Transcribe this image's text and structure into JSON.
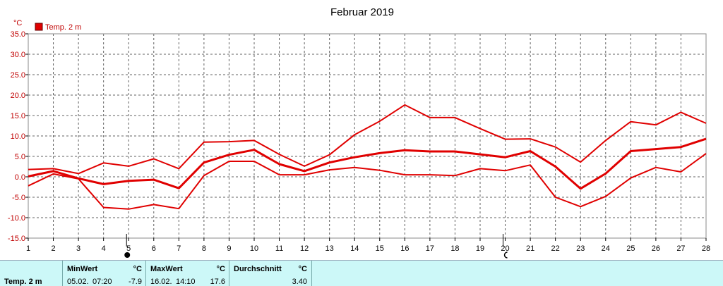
{
  "chart_data": {
    "type": "line",
    "title": "Februar 2019",
    "ylabel": "°C",
    "ylim": [
      -15,
      35
    ],
    "yticks": [
      "35.0",
      "30.0",
      "25.0",
      "20.0",
      "15.0",
      "10.0",
      "5.0",
      "0.0",
      "-5.0",
      "-10.0",
      "-15.0"
    ],
    "ytick_values": [
      35,
      30,
      25,
      20,
      15,
      10,
      5,
      0,
      -5,
      -10,
      -15
    ],
    "x": [
      1,
      2,
      3,
      4,
      5,
      6,
      7,
      8,
      9,
      10,
      11,
      12,
      13,
      14,
      15,
      16,
      17,
      18,
      19,
      20,
      21,
      22,
      23,
      24,
      25,
      26,
      27,
      28
    ],
    "grid": true,
    "legend": "top-left",
    "legend_label": "Temp. 2 m",
    "series": [
      {
        "name": "Temp. 2 m",
        "role": "max",
        "color": "#e00000",
        "values": [
          1.8,
          2.0,
          0.8,
          3.4,
          2.6,
          4.4,
          2.0,
          8.5,
          8.6,
          8.9,
          5.5,
          2.6,
          5.4,
          10.3,
          13.6,
          17.6,
          14.5,
          14.5,
          11.8,
          9.2,
          9.3,
          7.3,
          3.6,
          8.9,
          13.5,
          12.7,
          15.8,
          13.1
        ]
      },
      {
        "name": "Temp. 2 m",
        "role": "mean",
        "color": "#e00000",
        "values": [
          0.1,
          1.4,
          -0.4,
          -1.8,
          -1.0,
          -0.7,
          -2.8,
          3.5,
          5.4,
          6.6,
          3.1,
          1.4,
          3.5,
          4.8,
          5.8,
          6.5,
          6.2,
          6.2,
          5.5,
          4.8,
          6.3,
          2.5,
          -2.9,
          0.8,
          6.3,
          6.8,
          7.3,
          9.3
        ]
      },
      {
        "name": "Temp. 2 m",
        "role": "min",
        "color": "#e00000",
        "values": [
          -2.2,
          0.7,
          -0.5,
          -7.5,
          -7.9,
          -6.8,
          -7.8,
          0.3,
          3.8,
          3.8,
          0.5,
          0.5,
          1.7,
          2.3,
          1.6,
          0.5,
          0.5,
          0.3,
          2.0,
          1.5,
          2.9,
          -5.0,
          -7.3,
          -4.8,
          -0.3,
          2.3,
          1.2,
          5.7
        ]
      }
    ],
    "moon_phases": [
      {
        "x": 5,
        "phase": "new"
      },
      {
        "x": 20,
        "phase": "waxing"
      }
    ]
  },
  "stats": {
    "series_label": "Temp. 2 m",
    "min": {
      "header": "MinWert",
      "unit": "°C",
      "date": "05.02.",
      "time": "07:20",
      "value": "-7.9"
    },
    "max": {
      "header": "MaxWert",
      "unit": "°C",
      "date": "16.02.",
      "time": "14:10",
      "value": "17.6"
    },
    "avg": {
      "header": "Durchschnitt",
      "unit": "°C",
      "value": "3.40"
    }
  }
}
